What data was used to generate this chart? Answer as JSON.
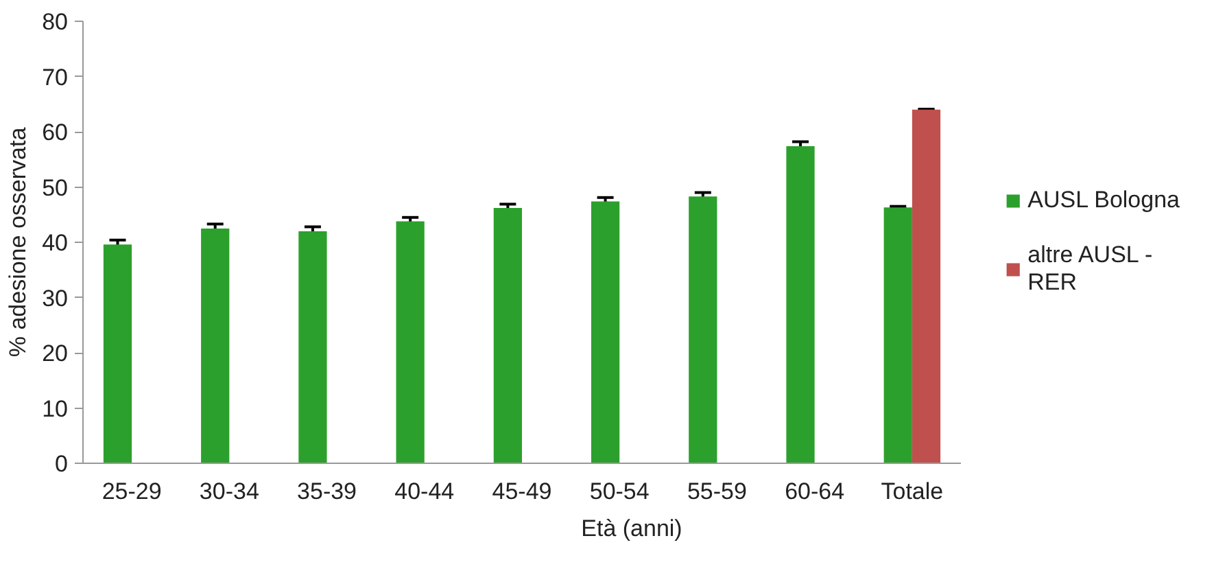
{
  "chart_data": {
    "type": "bar",
    "xlabel": "Età (anni)",
    "ylabel": "% adesione osservata",
    "categories": [
      "25-29",
      "30-34",
      "35-39",
      "40-44",
      "45-49",
      "50-54",
      "55-59",
      "60-64",
      "Totale"
    ],
    "series": [
      {
        "name": "AUSL Bologna",
        "color": "#2ca02c",
        "values": [
          39.6,
          42.5,
          42.0,
          43.8,
          46.2,
          47.4,
          48.3,
          57.4,
          46.3
        ],
        "errors": [
          0.8,
          0.8,
          0.8,
          0.7,
          0.7,
          0.7,
          0.7,
          0.8,
          0.2
        ]
      },
      {
        "name": "altre AUSL - RER",
        "color": "#c0504d",
        "values": [
          null,
          null,
          null,
          null,
          null,
          null,
          null,
          null,
          64.0
        ],
        "errors": [
          null,
          null,
          null,
          null,
          null,
          null,
          null,
          null,
          0.1
        ]
      }
    ],
    "ylim": [
      0,
      80
    ],
    "yticks": [
      0,
      10,
      20,
      30,
      40,
      50,
      60,
      70,
      80
    ],
    "grid": false,
    "legend": "right"
  }
}
